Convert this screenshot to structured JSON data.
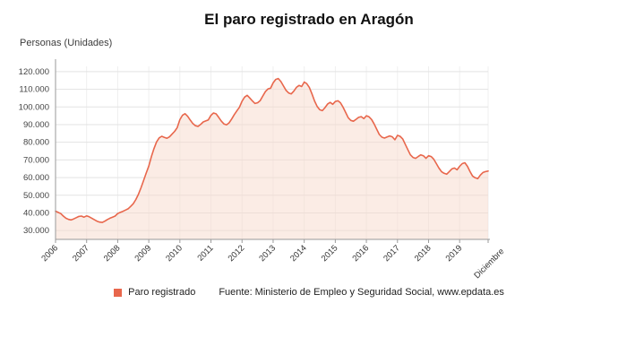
{
  "chart_data": {
    "type": "area",
    "title": "El paro registrado en Aragón",
    "ylabel": "Personas (Unidades)",
    "source": "Fuente: Ministerio de Empleo y Seguridad Social, www.epdata.es",
    "colors": {
      "line": "#e8674c",
      "fill": "#f7d9cc",
      "grid": "#e3e3e3",
      "axis": "#9a9a9a"
    },
    "ylim": [
      25000,
      123000
    ],
    "y_ticks": [
      30000,
      40000,
      50000,
      60000,
      70000,
      80000,
      90000,
      100000,
      110000,
      120000
    ],
    "y_tick_labels": [
      "30.000",
      "40.000",
      "50.000",
      "60.000",
      "70.000",
      "80.000",
      "90.000",
      "100.000",
      "110.000",
      "120.000"
    ],
    "x_ticks": [
      {
        "i": 0,
        "label": "2006"
      },
      {
        "i": 12,
        "label": "2007"
      },
      {
        "i": 24,
        "label": "2008"
      },
      {
        "i": 36,
        "label": "2009"
      },
      {
        "i": 48,
        "label": "2010"
      },
      {
        "i": 60,
        "label": "2011"
      },
      {
        "i": 72,
        "label": "2012"
      },
      {
        "i": 84,
        "label": "2013"
      },
      {
        "i": 96,
        "label": "2014"
      },
      {
        "i": 108,
        "label": "2015"
      },
      {
        "i": 120,
        "label": "2016"
      },
      {
        "i": 132,
        "label": "2017"
      },
      {
        "i": 144,
        "label": "2018"
      },
      {
        "i": 156,
        "label": "2019"
      },
      {
        "i": 167,
        "label": "Diciembre"
      }
    ],
    "series": [
      {
        "name": "Paro registrado",
        "values": [
          41000,
          40300,
          39600,
          38200,
          37000,
          36300,
          36000,
          36600,
          37300,
          38000,
          38200,
          37600,
          38300,
          37800,
          37000,
          36100,
          35300,
          34800,
          34600,
          35300,
          36200,
          37000,
          37600,
          38200,
          39600,
          40300,
          40900,
          41600,
          42300,
          43700,
          45200,
          47600,
          50600,
          54200,
          58300,
          62500,
          66500,
          71800,
          76400,
          80200,
          82500,
          83400,
          82800,
          82300,
          83100,
          84600,
          86200,
          88300,
          92800,
          95300,
          96200,
          94700,
          92600,
          90600,
          89400,
          89000,
          90100,
          91500,
          92100,
          92700,
          95200,
          96600,
          96100,
          94100,
          92000,
          90400,
          89900,
          91000,
          93200,
          95700,
          97800,
          99800,
          103200,
          105600,
          106600,
          105100,
          103400,
          102000,
          102400,
          103600,
          106200,
          108700,
          110200,
          110600,
          113600,
          115600,
          116100,
          114400,
          111900,
          109400,
          107900,
          107400,
          109000,
          111100,
          112200,
          111600,
          114100,
          113200,
          111000,
          107400,
          103400,
          100300,
          98400,
          97900,
          99600,
          101600,
          102600,
          101500,
          103100,
          103500,
          102400,
          99900,
          96900,
          93900,
          92400,
          91900,
          93000,
          94100,
          94500,
          93400,
          95000,
          94400,
          92900,
          90400,
          87400,
          84400,
          82900,
          82400,
          83000,
          83600,
          83100,
          81400,
          83900,
          83400,
          81900,
          78900,
          75900,
          72900,
          71400,
          70900,
          71900,
          72900,
          72400,
          70900,
          72400,
          71900,
          70400,
          67900,
          65400,
          63400,
          62400,
          61900,
          63400,
          64900,
          65400,
          64400,
          66400,
          67900,
          68400,
          66400,
          63400,
          60900,
          59900,
          59400,
          61400,
          62900,
          63400,
          63700
        ]
      }
    ],
    "legend_position": "bottom",
    "grid": true
  }
}
